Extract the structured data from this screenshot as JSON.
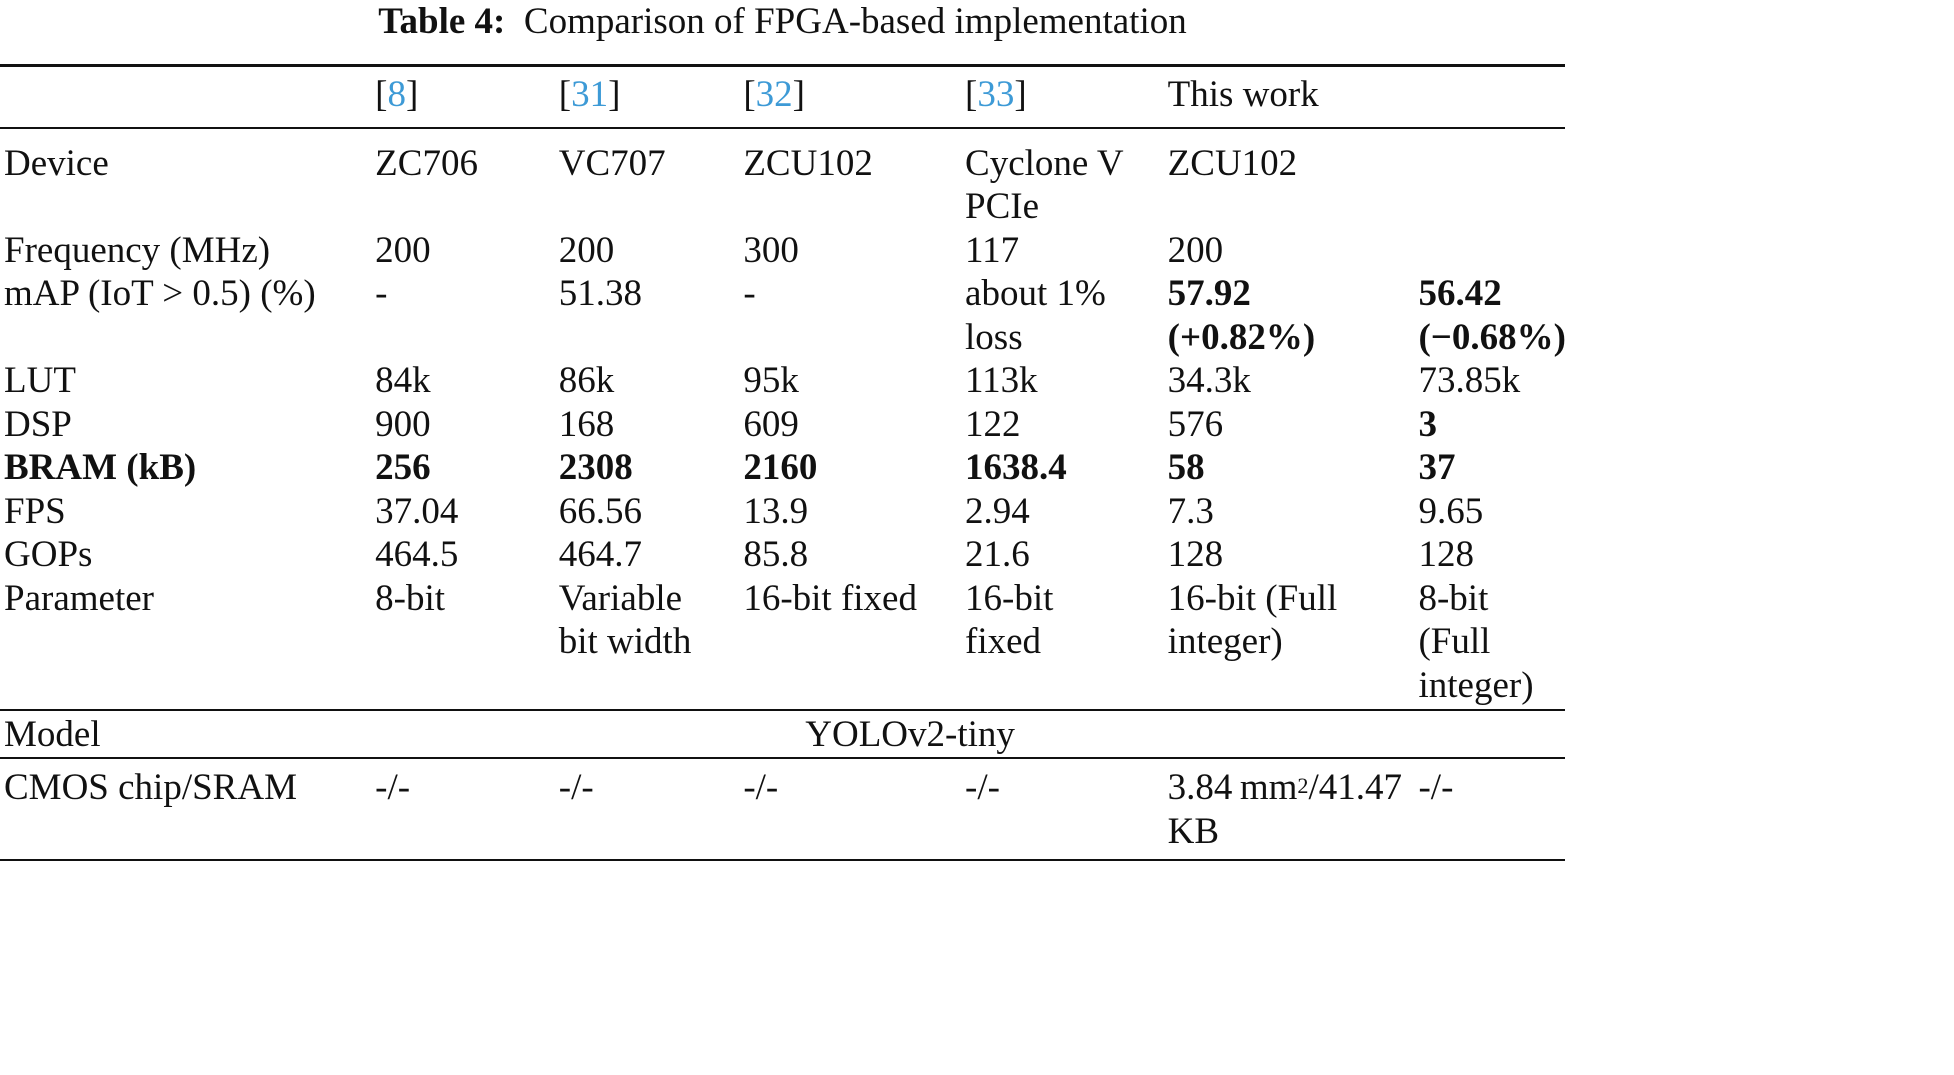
{
  "caption": {
    "label": "Table 4:",
    "text": "Comparison of FPGA-based implementation"
  },
  "link_color": "#3d9ad6",
  "header": [
    {
      "text": ""
    },
    {
      "ref": "8"
    },
    {
      "ref": "31"
    },
    {
      "ref": "32"
    },
    {
      "ref": "33"
    },
    {
      "text": "This work"
    },
    {
      "text": ""
    }
  ],
  "rows": [
    {
      "label": "Device",
      "cells": [
        "ZC706",
        "VC707",
        "ZCU102",
        "Cyclone V\nPCIe",
        "ZCU102",
        ""
      ],
      "bold": []
    },
    {
      "label": "Frequency (MHz)",
      "cells": [
        "200",
        "200",
        "300",
        "117",
        "200",
        ""
      ],
      "bold": []
    },
    {
      "label": "mAP (IoT > 0.5) (%)",
      "cells": [
        "-",
        "51.38",
        "-",
        "about 1%\nloss",
        "57.92\n(+0.82%)",
        "56.42\n(−0.68%)"
      ],
      "bold": [
        4,
        5
      ]
    },
    {
      "label": "LUT",
      "cells": [
        "84k",
        "86k",
        "95k",
        "113k",
        "34.3k",
        "73.85k"
      ],
      "bold": []
    },
    {
      "label": "DSP",
      "cells": [
        "900",
        "168",
        "609",
        "122",
        "576",
        "3"
      ],
      "bold": [
        5
      ]
    },
    {
      "label": "BRAM (kB)",
      "label_bold": true,
      "cells": [
        "256",
        "2308",
        "2160",
        "1638.4",
        "58",
        "37"
      ],
      "bold": [
        0,
        1,
        2,
        3,
        4,
        5
      ]
    },
    {
      "label": "FPS",
      "cells": [
        "37.04",
        "66.56",
        "13.9",
        "2.94",
        "7.3",
        "9.65"
      ],
      "bold": []
    },
    {
      "label": "GOPs",
      "cells": [
        "464.5",
        "464.7",
        "85.8",
        "21.6",
        "128",
        "128"
      ],
      "bold": []
    },
    {
      "label": "Parameter",
      "cells": [
        "8-bit",
        "Variable\nbit width",
        "16-bit fixed",
        "16-bit\nfixed",
        "16-bit (Full\ninteger)",
        "8-bit\n(Full\ninteger)"
      ],
      "bold": []
    }
  ],
  "model_row": {
    "label": "Model",
    "value": "YOLOv2-tiny"
  },
  "cmos_row": {
    "label": "CMOS chip/SRAM",
    "cells": [
      "-/-",
      "-/-",
      "-/-",
      "-/-",
      "",
      "-/-"
    ],
    "this_work": {
      "value": "3.84 mm",
      "sup": "2",
      "rest": "/41.47\nKB"
    }
  }
}
